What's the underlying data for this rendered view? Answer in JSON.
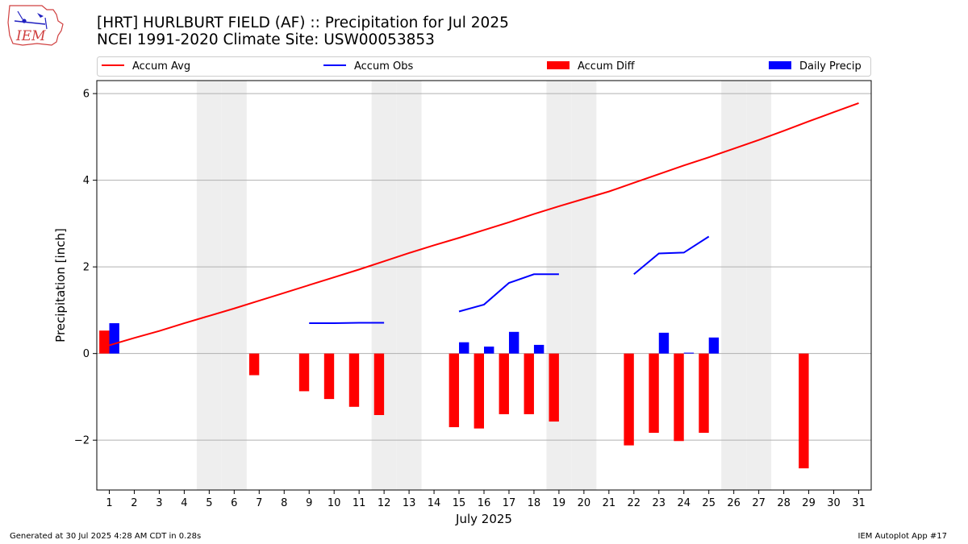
{
  "header": {
    "title_line1": "[HRT] HURLBURT FIELD (AF) :: Precipitation for Jul 2025",
    "title_line2": "NCEI 1991-2020 Climate Site: USW00053853",
    "logo_text": "IEM"
  },
  "footer": {
    "generated": "Generated at 30 Jul 2025 4:28 AM CDT in 0.28s",
    "app": "IEM Autoplot App #17"
  },
  "colors": {
    "avg": "#ff0000",
    "obs": "#0000ff",
    "diff": "#ff0000",
    "daily": "#0000ff",
    "weekend": "#eeeeee",
    "grid": "#b0b0b0"
  },
  "chart_data": {
    "type": "bar",
    "xlabel": "July 2025",
    "ylabel": "Precipitation [inch]",
    "ylim": [
      -3.15,
      6.3
    ],
    "xlim": [
      0.5,
      31.5
    ],
    "yticks": [
      -2,
      0,
      2,
      4,
      6
    ],
    "ytick_labels": [
      "−2",
      "0",
      "2",
      "4",
      "6"
    ],
    "days": [
      1,
      2,
      3,
      4,
      5,
      6,
      7,
      8,
      9,
      10,
      11,
      12,
      13,
      14,
      15,
      16,
      17,
      18,
      19,
      20,
      21,
      22,
      23,
      24,
      25,
      26,
      27,
      28,
      29,
      30,
      31
    ],
    "grid": "horizontal",
    "legend_position": "top",
    "legend": [
      "Accum Avg",
      "Accum Obs",
      "Accum Diff",
      "Daily Precip"
    ],
    "weekend_days": [
      5,
      6,
      12,
      13,
      19,
      20,
      26,
      27
    ],
    "accum_avg": [
      0.19,
      0.36,
      0.52,
      0.7,
      0.87,
      1.04,
      1.22,
      1.4,
      1.58,
      1.76,
      1.94,
      2.13,
      2.32,
      2.5,
      2.67,
      2.85,
      3.03,
      3.22,
      3.4,
      3.57,
      3.74,
      3.94,
      4.14,
      4.34,
      4.53,
      4.73,
      4.93,
      5.14,
      5.36,
      5.57,
      5.78
    ],
    "accum_obs": [
      null,
      null,
      null,
      null,
      null,
      null,
      null,
      null,
      0.7,
      0.7,
      0.71,
      0.71,
      null,
      null,
      0.97,
      1.13,
      1.63,
      1.83,
      1.83,
      null,
      null,
      1.83,
      2.31,
      2.33,
      2.7,
      null,
      null,
      null,
      null,
      null,
      null
    ],
    "accum_diff": [
      0.53,
      0,
      0,
      0,
      0,
      0,
      -0.5,
      0,
      -0.87,
      -1.05,
      -1.23,
      -1.42,
      0,
      0,
      -1.7,
      -1.73,
      -1.4,
      -1.4,
      -1.57,
      0,
      0,
      -2.12,
      -1.83,
      -2.02,
      -1.83,
      0,
      0,
      0,
      -2.65,
      0,
      0
    ],
    "daily_precip": [
      0.7,
      0,
      0,
      0,
      0,
      0,
      0,
      0,
      0,
      0,
      0,
      0,
      0,
      0,
      0.26,
      0.16,
      0.5,
      0.2,
      0,
      0,
      0,
      0,
      0.48,
      0.02,
      0.37,
      0,
      0,
      0,
      0,
      0,
      0
    ]
  }
}
